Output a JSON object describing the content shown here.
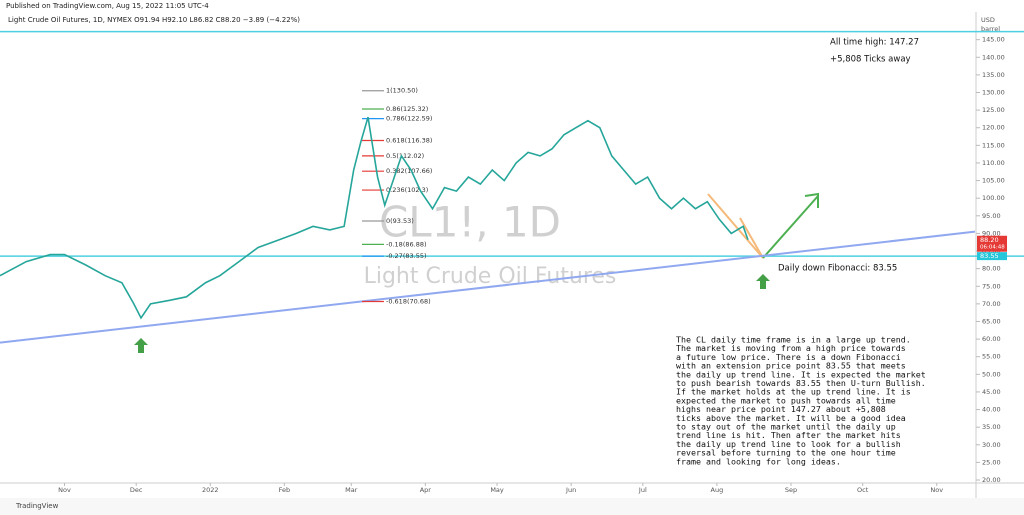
{
  "header": {
    "published": "Published on TradingView.com, Aug 15, 2022 11:05 UTC-4",
    "symbol_line": "Light Crude Oil Futures, 1D, NYMEX  O91.94  H92.10  L86.82  C88.20  −3.89 (−4.22%)",
    "currency": "USD",
    "unit": "barrel"
  },
  "footer": "TradingView",
  "chart_data": {
    "type": "line",
    "watermark": "CL1!, 1D",
    "watermark_subtitle": "Light Crude Oil Futures",
    "xlim": [
      4,
      412
    ],
    "xticks": [
      {
        "value": 31,
        "label": "Nov"
      },
      {
        "value": 61,
        "label": "Dec"
      },
      {
        "value": 92,
        "label": "2022"
      },
      {
        "value": 123,
        "label": "Feb"
      },
      {
        "value": 151,
        "label": "Mar"
      },
      {
        "value": 182,
        "label": "Apr"
      },
      {
        "value": 212,
        "label": "May"
      },
      {
        "value": 243,
        "label": "Jun"
      },
      {
        "value": 273,
        "label": "Jul"
      },
      {
        "value": 304,
        "label": "Aug"
      },
      {
        "value": 335,
        "label": "Sep"
      },
      {
        "value": 365,
        "label": "Oct"
      },
      {
        "value": 396,
        "label": "Nov"
      }
    ],
    "ylim": [
      20,
      152
    ],
    "yticks": [
      {
        "value": 20,
        "label": "20.00"
      },
      {
        "value": 25,
        "label": "25.00"
      },
      {
        "value": 30,
        "label": "30.00"
      },
      {
        "value": 35,
        "label": "35.00"
      },
      {
        "value": 40,
        "label": "40.00"
      },
      {
        "value": 45,
        "label": "45.00"
      },
      {
        "value": 50,
        "label": "50.00"
      },
      {
        "value": 55,
        "label": "55.00"
      },
      {
        "value": 60,
        "label": "60.00"
      },
      {
        "value": 65,
        "label": "65.00"
      },
      {
        "value": 70,
        "label": "70.00"
      },
      {
        "value": 75,
        "label": "75.00"
      },
      {
        "value": 80,
        "label": "80.00"
      },
      {
        "value": 85,
        "label": "85.00"
      },
      {
        "value": 90,
        "label": "90.00"
      },
      {
        "value": 95,
        "label": "95.00"
      },
      {
        "value": 100,
        "label": "100.00"
      },
      {
        "value": 105,
        "label": "105.00"
      },
      {
        "value": 110,
        "label": "110.00"
      },
      {
        "value": 115,
        "label": "115.00"
      },
      {
        "value": 120,
        "label": "120.00"
      },
      {
        "value": 125,
        "label": "125.00"
      },
      {
        "value": 130,
        "label": "130.00"
      },
      {
        "value": 135,
        "label": "135.00"
      },
      {
        "value": 140,
        "label": "140.00"
      },
      {
        "value": 145,
        "label": "145.00"
      }
    ],
    "x": [
      4,
      15,
      25,
      31,
      40,
      48,
      55,
      60,
      63,
      67,
      75,
      82,
      90,
      96,
      104,
      112,
      120,
      128,
      135,
      142,
      148,
      152,
      155,
      158,
      162,
      165,
      168,
      172,
      176,
      180,
      185,
      190,
      195,
      200,
      205,
      210,
      215,
      220,
      225,
      230,
      235,
      240,
      245,
      250,
      255,
      260,
      265,
      270,
      275,
      280,
      285,
      290,
      295,
      300,
      305,
      310,
      315,
      317
    ],
    "series": [
      {
        "name": "CL1!",
        "color": "#26a69a",
        "values": [
          78,
          82,
          84,
          84,
          81,
          78,
          76,
          70,
          66,
          70,
          71,
          72,
          76,
          78,
          82,
          86,
          88,
          90,
          92,
          91,
          92,
          108,
          116,
          123,
          106,
          98,
          104,
          112,
          108,
          102,
          97,
          103,
          102,
          106,
          104,
          108,
          105,
          110,
          113,
          112,
          114,
          118,
          120,
          122,
          120,
          112,
          108,
          104,
          106,
          100,
          97,
          100,
          97,
          99,
          94,
          90,
          92,
          88.2
        ]
      }
    ],
    "trend_line": {
      "x": [
        4,
        412
      ],
      "values": [
        59,
        90.5
      ],
      "color": "#90a8f0"
    },
    "levels": [
      {
        "value": 147.27,
        "label": "All time high: 147.27",
        "color": "#4dd0e1"
      },
      {
        "value": 83.55,
        "label": "Daily down Fibonacci: 83.55",
        "color": "#4dd0e1"
      }
    ],
    "ticks_away": "+5,808 Ticks away",
    "fib_levels": [
      {
        "value": 130.5,
        "label": "1(130.50)",
        "color": "#999999"
      },
      {
        "value": 125.32,
        "label": "0.86(125.32)",
        "color": "#4caf50"
      },
      {
        "value": 122.59,
        "label": "0.786(122.59)",
        "color": "#2196f3"
      },
      {
        "value": 116.38,
        "label": "0.618(116.38)",
        "color": "#e53935"
      },
      {
        "value": 112.02,
        "label": "0.5(112.02)",
        "color": "#e53935"
      },
      {
        "value": 107.66,
        "label": "0.382(107.66)",
        "color": "#e53935"
      },
      {
        "value": 102.3,
        "label": "0.236(102.3)",
        "color": "#e53935"
      },
      {
        "value": 93.53,
        "label": "0(93.53)",
        "color": "#999999"
      },
      {
        "value": 86.88,
        "label": "-0.18(86.88)",
        "color": "#4caf50"
      },
      {
        "value": 83.55,
        "label": "-0.27(83.55)",
        "color": "#2196f3"
      },
      {
        "value": 70.68,
        "label": "-0.618(70.68)",
        "color": "#e53935"
      }
    ],
    "price_tags": [
      {
        "value": 88.2,
        "label": "88.20",
        "sub": "06:04:48",
        "color": "#e53935"
      },
      {
        "value": 83.55,
        "label": "83.55",
        "color": "#26c6da"
      }
    ],
    "note": [
      "The CL daily time frame is in a large up trend.",
      "The market is moving from a high price towards",
      "a future low price. There is a down Fibonacci",
      "with an extension price point 83.55 that meets",
      "the daily up trend line. It is expected the market",
      "to push bearish towards 83.55 then U-turn Bullish.",
      "If the market holds at the up trend line. It is",
      "expected the market to push towards all time",
      "highs near price point 147.27 about +5,808",
      "ticks above the market. It will be a good idea",
      "to stay out of the market until the daily up",
      "trend line is hit. Then after the market hits",
      "the daily up trend line to look for a bullish",
      "reversal before turning to the one hour time",
      "frame and looking for long ideas."
    ]
  }
}
